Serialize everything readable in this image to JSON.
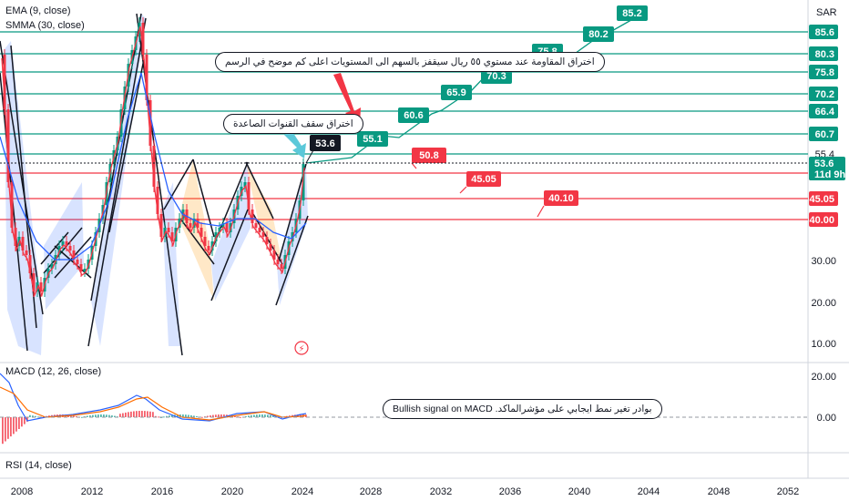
{
  "header": {
    "indicator_ema": "EMA (9, close)",
    "indicator_smma": "SMMA (30, close)",
    "indicator_macd": "MACD (12, 26, close)",
    "indicator_rsi": "RSI (14, close)",
    "currency": "SAR"
  },
  "chart_data": {
    "type": "line",
    "x_ticks": [
      "2008",
      "2012",
      "2016",
      "2020",
      "2024",
      "2028",
      "2032",
      "2036",
      "2040",
      "2044",
      "2048",
      "2052"
    ],
    "y_ticks_price": [
      "10.00",
      "20.00",
      "30.00"
    ],
    "y_ticks_macd": [
      "20.00",
      "0.00"
    ],
    "current_price": "53.6",
    "countdown": "11d 9h",
    "resistance_levels": [
      {
        "value": 85.6,
        "label": "85.6",
        "color": "#089981"
      },
      {
        "value": 80.3,
        "label": "80.3",
        "color": "#089981"
      },
      {
        "value": 75.8,
        "label": "75.8",
        "color": "#089981"
      },
      {
        "value": 70.2,
        "label": "70.2",
        "color": "#089981"
      },
      {
        "value": 66.4,
        "label": "66.4",
        "color": "#089981"
      },
      {
        "value": 60.7,
        "label": "60.7",
        "color": "#089981"
      },
      {
        "value": 55.4,
        "label": "55.4",
        "color": "#089981"
      }
    ],
    "support_levels": [
      {
        "value": 50.8,
        "label": "50.8",
        "color": "#f23645"
      },
      {
        "value": 45.05,
        "label": "45.05",
        "color": "#f23645"
      },
      {
        "value": 40.0,
        "label": "40.00",
        "color": "#f23645"
      }
    ],
    "target_tags": [
      "55.1",
      "60.6",
      "65.9",
      "70.3",
      "75.8",
      "80.2",
      "85.2"
    ],
    "support_tags": [
      "50.8",
      "45.05",
      "40.10"
    ],
    "price_tag": "53.6",
    "colors": {
      "up": "#089981",
      "down": "#f23645",
      "ema": "#f23645",
      "smma": "#2962ff",
      "macd": "#2962ff",
      "signal": "#ff6d00"
    }
  },
  "annotations": {
    "resistance_note": "اختراق المقاومة عند مستوي ٥٥ ريال سيقفز بالسهم الى المستويات اعلى كم موضح في الرسم",
    "channel_note": "اختراق سقف القنوات الصاعدة",
    "macd_note": "بوادر تغير نمط ايجابي على مؤشرالماكد. Bullish signal on MACD"
  }
}
